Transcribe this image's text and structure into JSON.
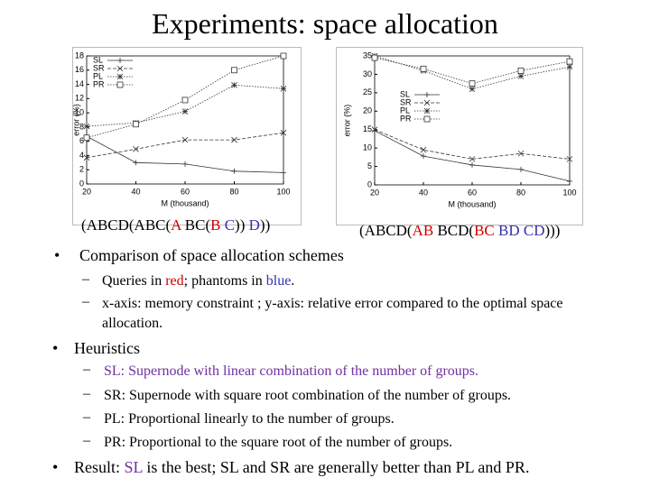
{
  "title": "Experiments: space allocation",
  "chart_data": [
    {
      "type": "line",
      "xlabel": "M (thousand)",
      "ylabel": "error (%)",
      "x": [
        20,
        40,
        60,
        80,
        100
      ],
      "xlim": [
        20,
        100
      ],
      "xticks": [
        20,
        40,
        60,
        80,
        100
      ],
      "ylim": [
        0,
        18
      ],
      "yticks": [
        0,
        2,
        4,
        6,
        8,
        10,
        12,
        14,
        16,
        18
      ],
      "legend": "upper left",
      "series": [
        {
          "name": "SL",
          "color": "#333333",
          "marker": "plus",
          "linestyle": "solid",
          "values": [
            6.7,
            3,
            2.8,
            1.8,
            1.6
          ]
        },
        {
          "name": "SR",
          "color": "#333333",
          "marker": "x",
          "linestyle": "dashed",
          "values": [
            3.7,
            4.9,
            6.2,
            6.2,
            7.2
          ]
        },
        {
          "name": "PL",
          "color": "#333333",
          "marker": "star",
          "linestyle": "dotted",
          "values": [
            8.1,
            8.6,
            10.2,
            13.9,
            13.4
          ]
        },
        {
          "name": "PR",
          "color": "#333333",
          "marker": "square",
          "linestyle": "dotted",
          "values": [
            6.5,
            8.4,
            11.8,
            16,
            18
          ]
        }
      ]
    },
    {
      "type": "line",
      "xlabel": "M (thousand)",
      "ylabel": "error (%)",
      "x": [
        20,
        40,
        60,
        80,
        100
      ],
      "xlim": [
        20,
        100
      ],
      "xticks": [
        20,
        40,
        60,
        80,
        100
      ],
      "ylim": [
        0,
        35
      ],
      "yticks": [
        0,
        5,
        10,
        15,
        20,
        25,
        30,
        35
      ],
      "legend": "center left",
      "series": [
        {
          "name": "SL",
          "color": "#333333",
          "marker": "plus",
          "linestyle": "solid",
          "values": [
            14.7,
            7.8,
            5.4,
            4.2,
            1
          ]
        },
        {
          "name": "SR",
          "color": "#333333",
          "marker": "x",
          "linestyle": "dashed",
          "values": [
            15,
            9.5,
            7,
            8.5,
            7
          ]
        },
        {
          "name": "PL",
          "color": "#333333",
          "marker": "star",
          "linestyle": "dotted",
          "values": [
            35,
            31,
            26,
            29.5,
            32
          ]
        },
        {
          "name": "PR",
          "color": "#333333",
          "marker": "square",
          "linestyle": "dotted",
          "values": [
            34.5,
            31.5,
            27.5,
            31,
            33.5
          ]
        }
      ]
    }
  ],
  "captions": [
    [
      {
        "text": "(ABCD(ABC(",
        "color": "#000000"
      },
      {
        "text": "A",
        "color": "#cc0000"
      },
      {
        "text": " BC(",
        "color": "#000000"
      },
      {
        "text": "B",
        "color": "#cc0000"
      },
      {
        "text": " C",
        "color": "#3333aa"
      },
      {
        "text": ")) ",
        "color": "#000000"
      },
      {
        "text": "D",
        "color": "#3333aa"
      },
      {
        "text": "))",
        "color": "#000000"
      }
    ],
    [
      {
        "text": "(ABCD(",
        "color": "#000000"
      },
      {
        "text": "AB",
        "color": "#cc0000"
      },
      {
        "text": " BCD(",
        "color": "#000000"
      },
      {
        "text": "BC",
        "color": "#cc0000"
      },
      {
        "text": " BD CD",
        "color": "#3333aa"
      },
      {
        "text": ")))",
        "color": "#000000"
      }
    ]
  ],
  "bullets": [
    {
      "text": [
        {
          "text": "Comparison of space allocation schemes",
          "color": "#000000"
        }
      ],
      "items": [
        [
          {
            "text": "Queries in ",
            "color": "#000000"
          },
          {
            "text": "red",
            "color": "#cc0000"
          },
          {
            "text": "; phantoms in ",
            "color": "#000000"
          },
          {
            "text": "blue",
            "color": "#3333aa"
          },
          {
            "text": ".",
            "color": "#000000"
          }
        ],
        [
          {
            "text": "x-axis: memory constraint ; y-axis: relative error compared to the optimal space allocation.",
            "color": "#000000"
          }
        ]
      ]
    },
    {
      "text": [
        {
          "text": "Heuristics",
          "color": "#000000"
        }
      ],
      "items": [
        [
          {
            "text": "SL: Supernode with linear combination of the number of groups.",
            "color": "#7030a0"
          }
        ],
        [
          {
            "text": "SR: Supernode with square root combination of the number of groups.",
            "color": "#000000"
          }
        ],
        [
          {
            "text": "PL: Proportional linearly to the number of groups.",
            "color": "#000000"
          }
        ],
        [
          {
            "text": "PR: Proportional to the square root of the number of groups.",
            "color": "#000000"
          }
        ]
      ]
    },
    {
      "text": [
        {
          "text": "Result: ",
          "color": "#000000"
        },
        {
          "text": "SL",
          "color": "#7030a0"
        },
        {
          "text": " is the best; SL and SR are generally better than PL and PR.",
          "color": "#000000"
        }
      ],
      "items": []
    }
  ]
}
